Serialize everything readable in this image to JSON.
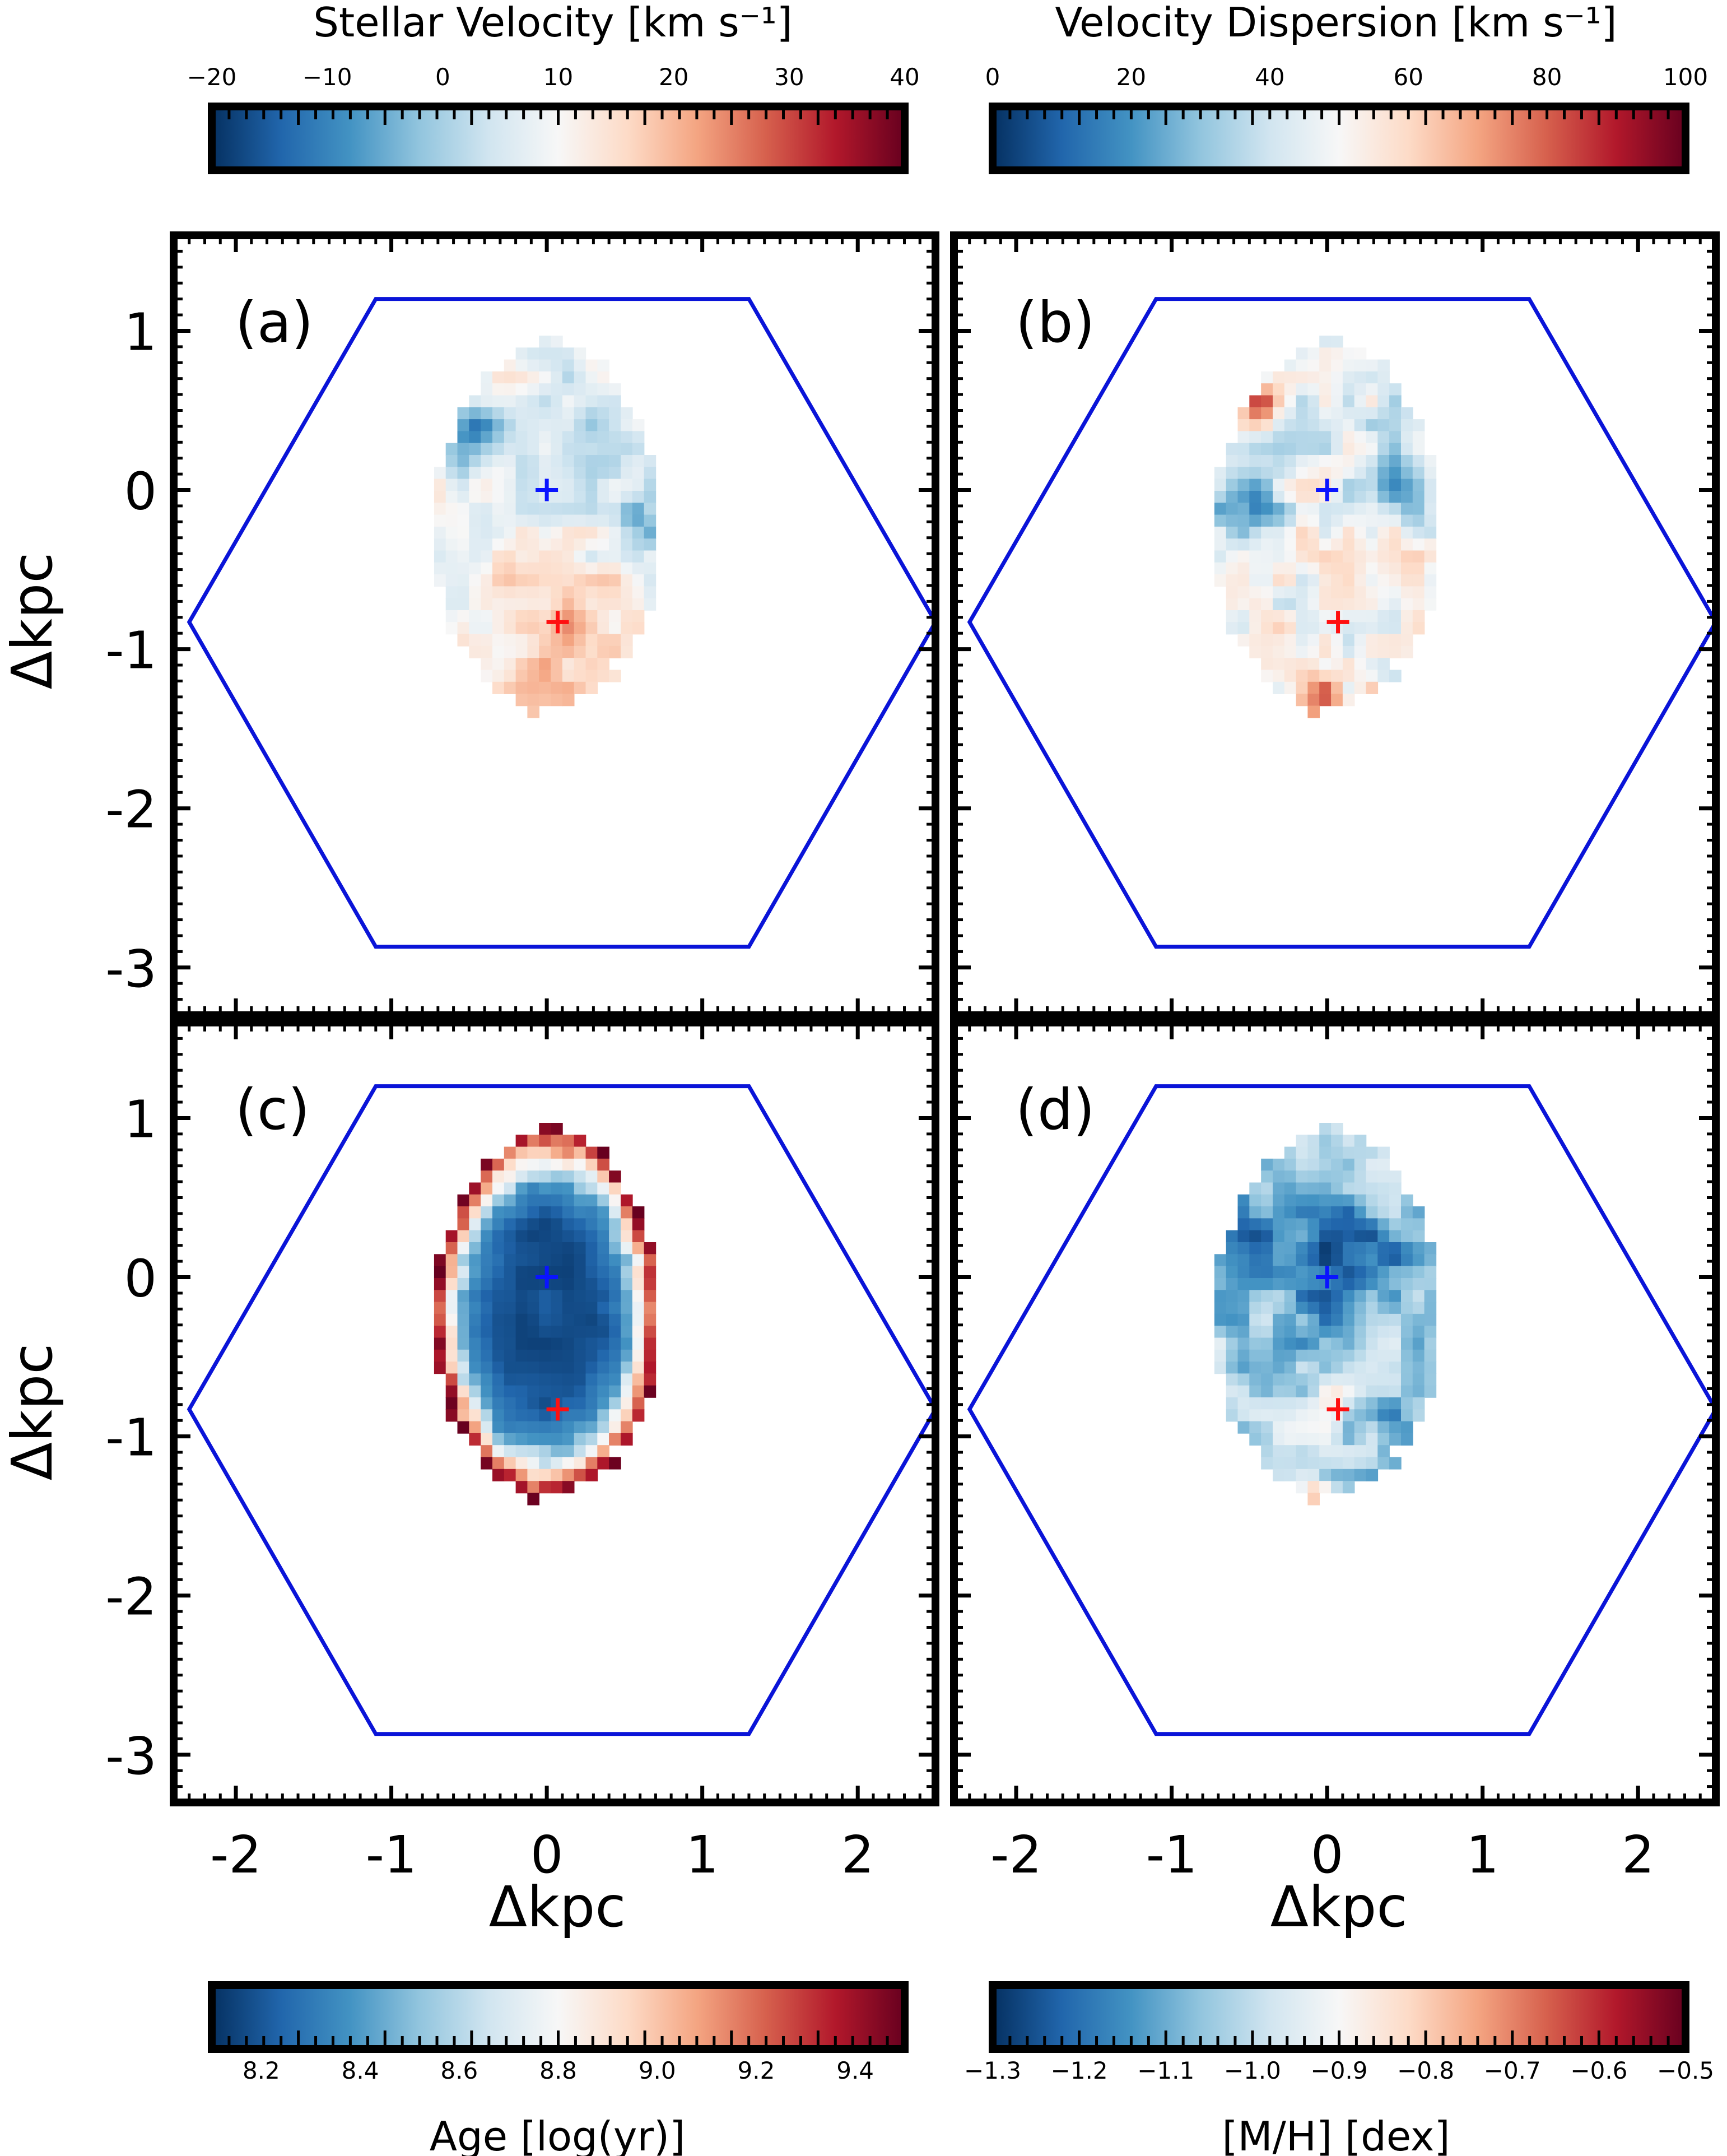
{
  "chart_data": {
    "type": "heatmap",
    "xlim": [
      -2.4,
      2.5
    ],
    "ylim": [
      -3.3,
      1.6
    ],
    "x_ticks": [
      {
        "v": -2,
        "label": "-2"
      },
      {
        "v": -1,
        "label": "-1"
      },
      {
        "v": 0,
        "label": "0"
      },
      {
        "v": 1,
        "label": "1"
      },
      {
        "v": 2,
        "label": "2"
      }
    ],
    "y_ticks": [
      {
        "v": 1,
        "label": "1"
      },
      {
        "v": 0,
        "label": "0"
      },
      {
        "v": -1,
        "label": "-1"
      },
      {
        "v": -2,
        "label": "-2"
      },
      {
        "v": -3,
        "label": "-3"
      }
    ],
    "xlabel": "Δkpc",
    "ylabel": "Δkpc",
    "hexagon_kpc": [
      [
        -1.1,
        1.2
      ],
      [
        1.3,
        1.2
      ],
      [
        2.5,
        -0.83
      ],
      [
        1.3,
        -2.87
      ],
      [
        -1.1,
        -2.87
      ],
      [
        -2.3,
        -0.83
      ]
    ],
    "blue_cross_kpc": [
      0.0,
      0.0
    ],
    "red_cross_kpc": [
      0.07,
      -0.83
    ],
    "colorbars": [
      {
        "id": "velocity",
        "title": "Stellar Velocity [km s⁻¹]",
        "position": "top-left",
        "range": [
          -20,
          40
        ],
        "ticks": [
          {
            "v": -20,
            "label": "−20"
          },
          {
            "v": -10,
            "label": "−10"
          },
          {
            "v": 0,
            "label": "0"
          },
          {
            "v": 10,
            "label": "10"
          },
          {
            "v": 20,
            "label": "20"
          },
          {
            "v": 30,
            "label": "30"
          },
          {
            "v": 40,
            "label": "40"
          }
        ]
      },
      {
        "id": "dispersion",
        "title": "Velocity Dispersion [km s⁻¹]",
        "position": "top-right",
        "range": [
          0,
          100
        ],
        "ticks": [
          {
            "v": 0,
            "label": "0"
          },
          {
            "v": 20,
            "label": "20"
          },
          {
            "v": 40,
            "label": "40"
          },
          {
            "v": 60,
            "label": "60"
          },
          {
            "v": 80,
            "label": "80"
          },
          {
            "v": 100,
            "label": "100"
          }
        ]
      },
      {
        "id": "age",
        "title": "Age [log(yr)]",
        "position": "bottom-left",
        "range": [
          8.1,
          9.5
        ],
        "ticks": [
          {
            "v": 8.2,
            "label": "8.2"
          },
          {
            "v": 8.4,
            "label": "8.4"
          },
          {
            "v": 8.6,
            "label": "8.6"
          },
          {
            "v": 8.8,
            "label": "8.8"
          },
          {
            "v": 9.0,
            "label": "9.0"
          },
          {
            "v": 9.2,
            "label": "9.2"
          },
          {
            "v": 9.4,
            "label": "9.4"
          }
        ]
      },
      {
        "id": "metallicity",
        "title": "[M/H] [dex]",
        "position": "bottom-right",
        "range": [
          -1.3,
          -0.5
        ],
        "ticks": [
          {
            "v": -1.3,
            "label": "−1.3"
          },
          {
            "v": -1.2,
            "label": "−1.2"
          },
          {
            "v": -1.1,
            "label": "−1.1"
          },
          {
            "v": -1.0,
            "label": "−1.0"
          },
          {
            "v": -0.9,
            "label": "−0.9"
          },
          {
            "v": -0.8,
            "label": "−0.8"
          },
          {
            "v": -0.7,
            "label": "−0.7"
          },
          {
            "v": -0.6,
            "label": "−0.6"
          },
          {
            "v": -0.5,
            "label": "−0.5"
          }
        ]
      }
    ],
    "colormap": "RdBu_r",
    "panels": [
      {
        "letter": "(a)",
        "quantity": "Stellar Velocity",
        "cbar": "velocity"
      },
      {
        "letter": "(b)",
        "quantity": "Velocity Dispersion",
        "cbar": "dispersion"
      },
      {
        "letter": "(c)",
        "quantity": "Age",
        "cbar": "age"
      },
      {
        "letter": "(d)",
        "quantity": "[M/H]",
        "cbar": "metallicity"
      }
    ]
  },
  "colors": {
    "hexagon": "#0a14d8",
    "blue_cross": "#0a14ff",
    "red_cross": "#ff1010",
    "frame": "#000000"
  }
}
